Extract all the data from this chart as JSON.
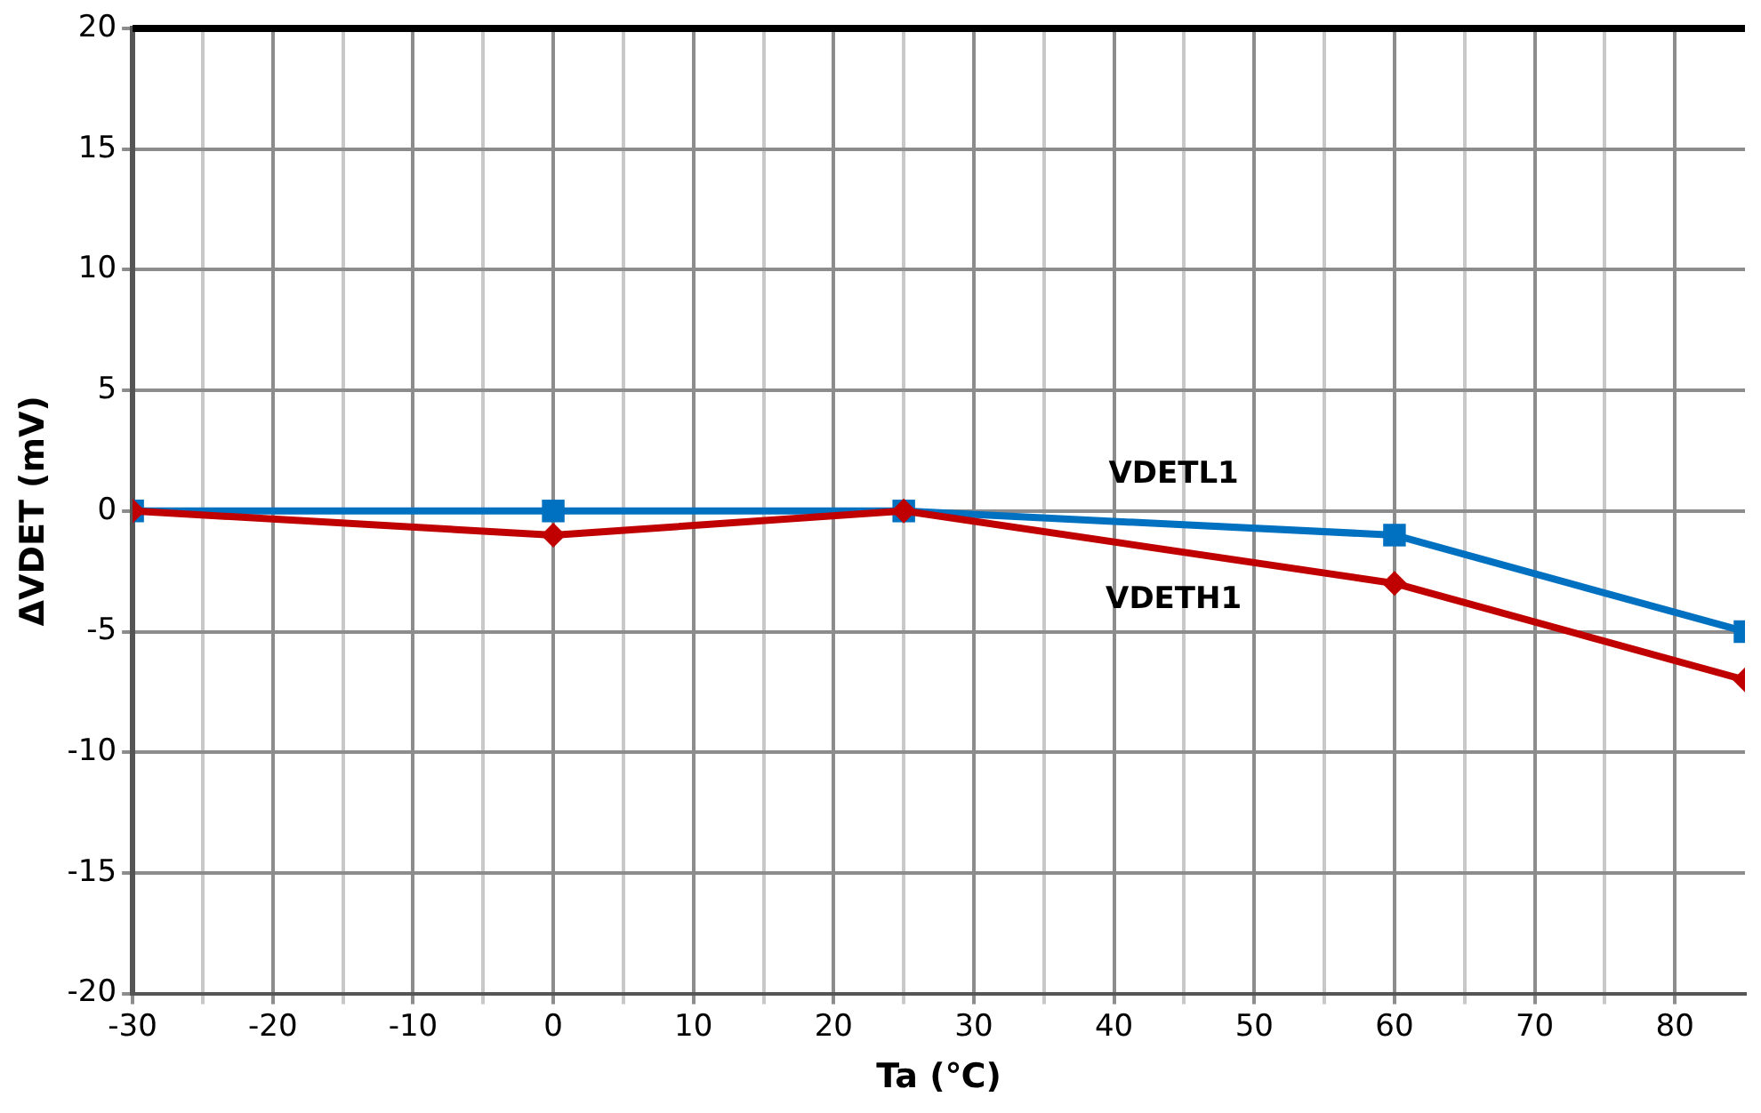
{
  "chart_data": {
    "type": "line",
    "xlabel": "Ta (℃)",
    "ylabel": "ΔVDET (mV)",
    "x": [
      -30,
      0,
      25,
      60,
      85
    ],
    "series": [
      {
        "name": "VDETH1",
        "color": "#c00000",
        "values": [
          0,
          -1,
          0,
          -3,
          -7
        ],
        "marker": "diamond"
      },
      {
        "name": "VDETL1",
        "color": "#0070c0",
        "values": [
          0,
          0,
          0,
          -1,
          -5
        ],
        "marker": "square"
      }
    ],
    "xlim": [
      -30,
      85
    ],
    "xticks": [
      -30,
      {
        "value": -25,
        "label": null
      },
      -20,
      {
        "value": -15,
        "label": null
      },
      -10,
      {
        "value": -5,
        "label": null
      },
      0,
      {
        "value": 5,
        "label": null
      },
      10,
      {
        "value": 15,
        "label": null
      },
      20,
      {
        "value": 25,
        "label": null
      },
      30,
      {
        "value": 35,
        "label": null
      },
      40,
      {
        "value": 45,
        "label": null
      },
      50,
      {
        "value": 55,
        "label": null
      },
      60,
      {
        "value": 65,
        "label": null
      },
      70,
      {
        "value": 75,
        "label": null
      },
      80
    ],
    "ylim": [
      -20,
      20
    ],
    "yticks": [
      -20,
      -15,
      -10,
      -5,
      0,
      5,
      10,
      15,
      20
    ],
    "grid": true,
    "legend": false,
    "line_style": "solid"
  }
}
